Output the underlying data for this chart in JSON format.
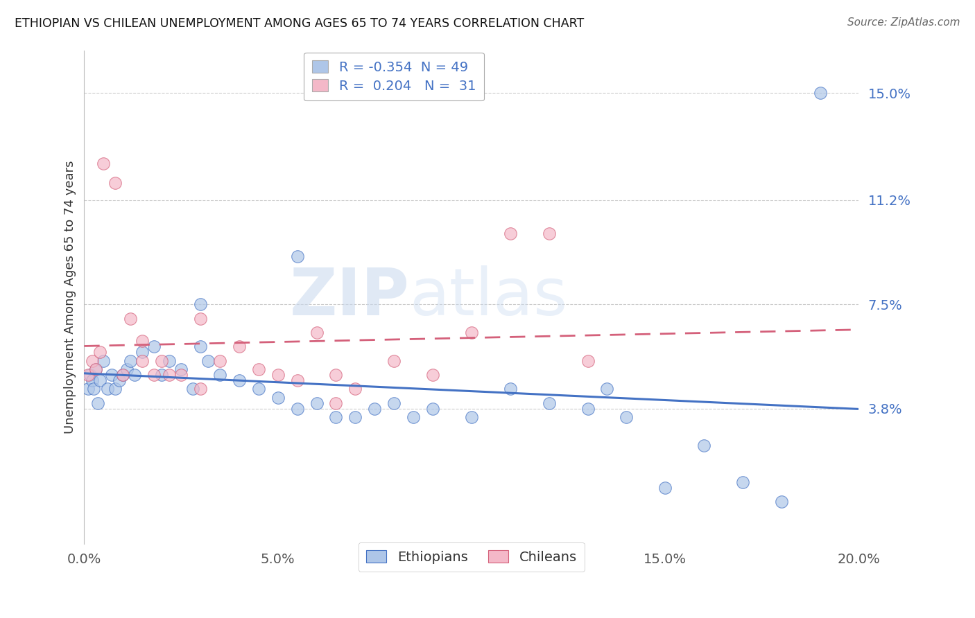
{
  "title": "ETHIOPIAN VS CHILEAN UNEMPLOYMENT AMONG AGES 65 TO 74 YEARS CORRELATION CHART",
  "source": "Source: ZipAtlas.com",
  "ylabel": "Unemployment Among Ages 65 to 74 years",
  "xlim": [
    0,
    20.0
  ],
  "ylim": [
    -1.0,
    16.5
  ],
  "yticks": [
    3.8,
    7.5,
    11.2,
    15.0
  ],
  "ytick_labels": [
    "3.8%",
    "7.5%",
    "11.2%",
    "15.0%"
  ],
  "xticks": [
    0,
    5,
    10,
    15,
    20
  ],
  "xtick_labels": [
    "0.0%",
    "5.0%",
    "10.0%",
    "15.0%",
    "20.0%"
  ],
  "legend_ethiopians": "Ethiopians",
  "legend_chileans": "Chileans",
  "r_ethiopians": "-0.354",
  "n_ethiopians": "49",
  "r_chileans": "0.204",
  "n_chileans": "31",
  "ethiopian_color": "#aec6e8",
  "chilean_color": "#f4b8c8",
  "trend_blue": "#4472c4",
  "trend_pink": "#d4607a",
  "watermark_zip": "ZIP",
  "watermark_atlas": "atlas",
  "eth_x": [
    0.1,
    0.15,
    0.2,
    0.25,
    0.3,
    0.35,
    0.4,
    0.5,
    0.6,
    0.7,
    0.8,
    0.9,
    1.0,
    1.1,
    1.2,
    1.3,
    1.5,
    1.8,
    2.0,
    2.2,
    2.5,
    2.8,
    3.0,
    3.2,
    3.5,
    4.0,
    4.5,
    5.0,
    5.5,
    6.0,
    6.5,
    7.0,
    7.5,
    8.0,
    8.5,
    9.0,
    10.0,
    11.0,
    12.0,
    13.0,
    13.5,
    14.0,
    15.0,
    16.0,
    17.0,
    18.0,
    19.0,
    3.0,
    5.5
  ],
  "eth_y": [
    4.5,
    5.0,
    4.8,
    4.5,
    5.2,
    4.0,
    4.8,
    5.5,
    4.5,
    5.0,
    4.5,
    4.8,
    5.0,
    5.2,
    5.5,
    5.0,
    5.8,
    6.0,
    5.0,
    5.5,
    5.2,
    4.5,
    6.0,
    5.5,
    5.0,
    4.8,
    4.5,
    4.2,
    3.8,
    4.0,
    3.5,
    3.5,
    3.8,
    4.0,
    3.5,
    3.8,
    3.5,
    4.5,
    4.0,
    3.8,
    4.5,
    3.5,
    1.0,
    2.5,
    1.2,
    0.5,
    15.0,
    7.5,
    9.2
  ],
  "chi_x": [
    0.1,
    0.2,
    0.3,
    0.5,
    0.8,
    1.0,
    1.2,
    1.5,
    1.8,
    2.0,
    2.2,
    2.5,
    3.0,
    3.5,
    4.0,
    4.5,
    5.0,
    5.5,
    6.0,
    6.5,
    7.0,
    8.0,
    9.0,
    10.0,
    11.0,
    12.0,
    13.0,
    0.4,
    1.5,
    3.0,
    6.5
  ],
  "chi_y": [
    5.0,
    5.5,
    5.2,
    12.5,
    11.8,
    5.0,
    7.0,
    5.5,
    5.0,
    5.5,
    5.0,
    5.0,
    7.0,
    5.5,
    6.0,
    5.2,
    5.0,
    4.8,
    6.5,
    5.0,
    4.5,
    5.5,
    5.0,
    6.5,
    10.0,
    10.0,
    5.5,
    5.8,
    6.2,
    4.5,
    4.0
  ]
}
